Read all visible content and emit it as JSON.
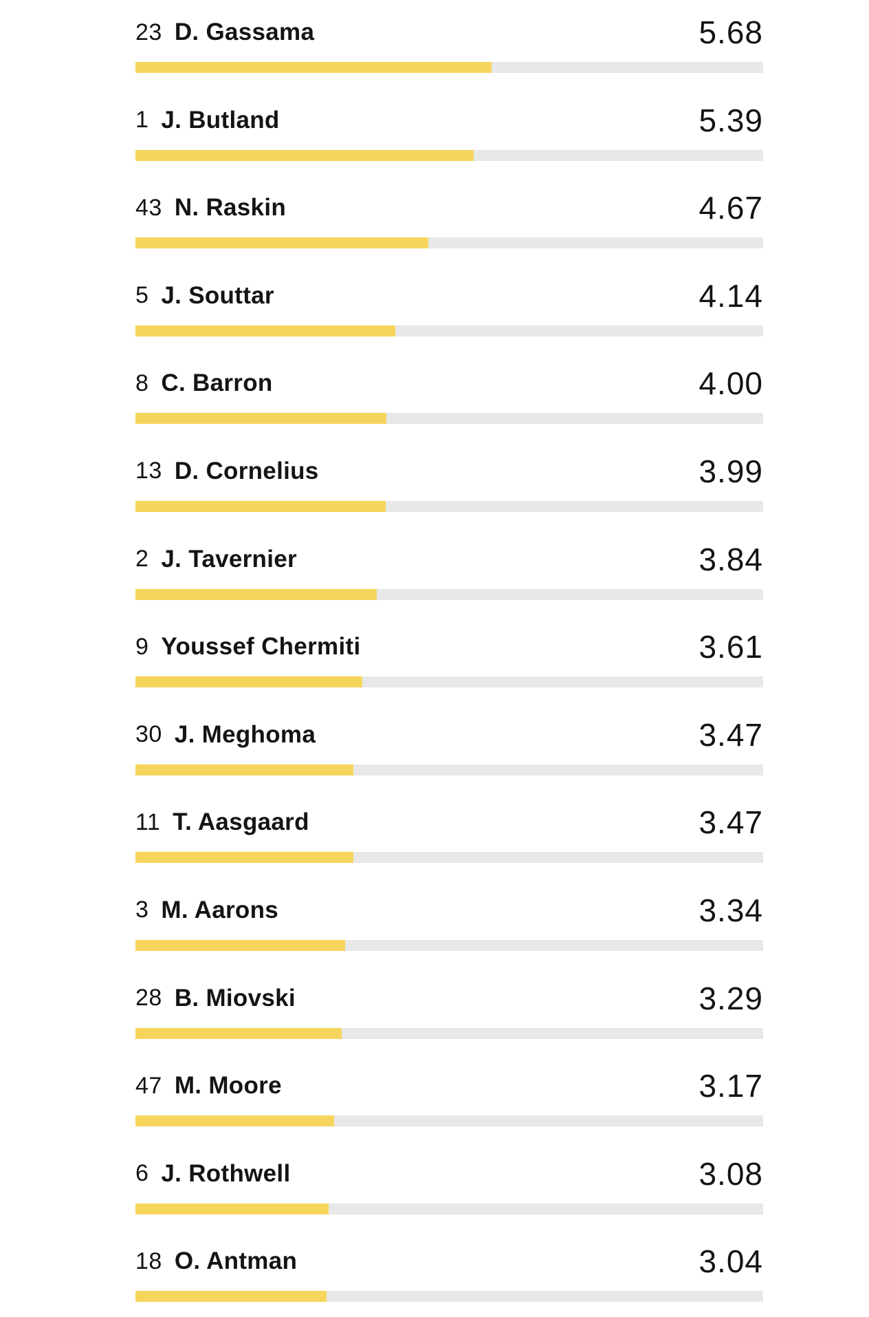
{
  "colors": {
    "bar_fill": "#f6d55c",
    "bar_track": "#e8e8e8"
  },
  "players": [
    {
      "number": "23",
      "name": "D. Gassama",
      "rating": "5.68",
      "bar_fraction": 0.567
    },
    {
      "number": "1",
      "name": "J. Butland",
      "rating": "5.39",
      "bar_fraction": 0.539
    },
    {
      "number": "43",
      "name": "N. Raskin",
      "rating": "4.67",
      "bar_fraction": 0.467
    },
    {
      "number": "5",
      "name": "J. Souttar",
      "rating": "4.14",
      "bar_fraction": 0.414
    },
    {
      "number": "8",
      "name": "C. Barron",
      "rating": "4.00",
      "bar_fraction": 0.4
    },
    {
      "number": "13",
      "name": "D. Cornelius",
      "rating": "3.99",
      "bar_fraction": 0.399
    },
    {
      "number": "2",
      "name": "J. Tavernier",
      "rating": "3.84",
      "bar_fraction": 0.384
    },
    {
      "number": "9",
      "name": "Youssef Chermiti",
      "rating": "3.61",
      "bar_fraction": 0.361
    },
    {
      "number": "30",
      "name": "J. Meghoma",
      "rating": "3.47",
      "bar_fraction": 0.347
    },
    {
      "number": "11",
      "name": "T. Aasgaard",
      "rating": "3.47",
      "bar_fraction": 0.347
    },
    {
      "number": "3",
      "name": "M. Aarons",
      "rating": "3.34",
      "bar_fraction": 0.334
    },
    {
      "number": "28",
      "name": "B. Miovski",
      "rating": "3.29",
      "bar_fraction": 0.329
    },
    {
      "number": "47",
      "name": "M. Moore",
      "rating": "3.17",
      "bar_fraction": 0.317
    },
    {
      "number": "6",
      "name": "J. Rothwell",
      "rating": "3.08",
      "bar_fraction": 0.308
    },
    {
      "number": "18",
      "name": "O. Antman",
      "rating": "3.04",
      "bar_fraction": 0.304
    }
  ]
}
